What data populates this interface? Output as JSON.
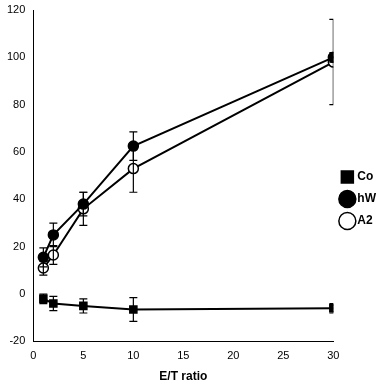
{
  "chart_data": {
    "type": "line",
    "x_label": "E/T ratio",
    "x": [
      1,
      2,
      5,
      10,
      30
    ],
    "xlim": [
      0,
      30
    ],
    "xticks": [
      0,
      5,
      10,
      15,
      20,
      25,
      30
    ],
    "ylim": [
      -20,
      120
    ],
    "yticks": [
      -20,
      0,
      20,
      40,
      60,
      80,
      100,
      120
    ],
    "grid": false,
    "legend": "right",
    "series": [
      {
        "name": "Co",
        "color": "#000000",
        "marker": "square",
        "line_style": "solid",
        "values": [
          -2,
          -4,
          -5,
          -6.5,
          -6
        ],
        "errors": [
          2,
          3,
          3,
          5,
          2
        ]
      },
      {
        "name": "hW",
        "color": "#000000",
        "marker": "circle",
        "line_style": "solid",
        "values": [
          15.5,
          25,
          38,
          62.5,
          100
        ],
        "errors": [
          4,
          5,
          5,
          6,
          2
        ]
      },
      {
        "name": "A2",
        "color": "#000000",
        "marker": "open_circle",
        "line_style": "solid",
        "values": [
          11,
          16.5,
          36,
          53,
          98
        ],
        "errors": [
          3,
          4,
          7,
          10,
          18
        ]
      }
    ]
  }
}
